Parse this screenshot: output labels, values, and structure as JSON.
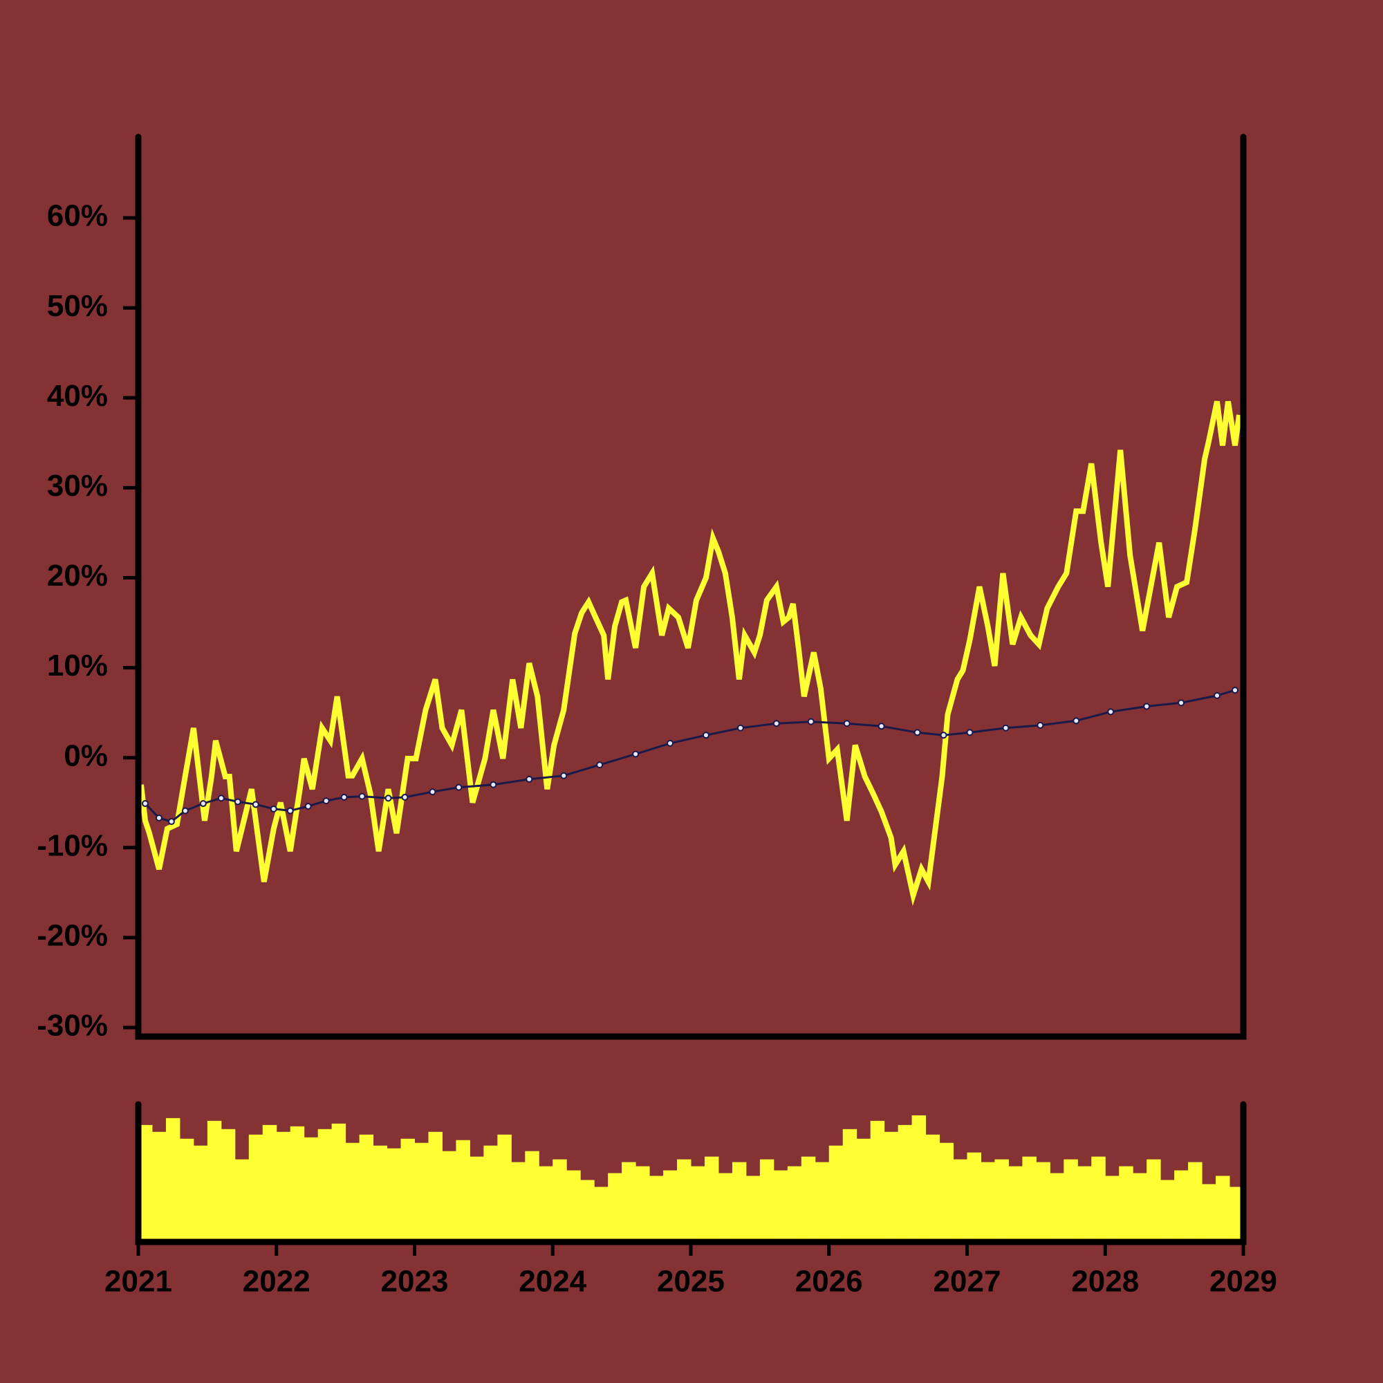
{
  "chart_data": [
    {
      "type": "line",
      "xlim": [
        2021,
        2029
      ],
      "xticks": [
        2021,
        2022,
        2023,
        2024,
        2025,
        2026,
        2027,
        2028,
        2029
      ],
      "ylim": [
        -31,
        69
      ],
      "yticks": [
        {
          "value": -30,
          "label": "-30%"
        },
        {
          "value": -20,
          "label": "-20%"
        },
        {
          "value": -10,
          "label": "-10%"
        },
        {
          "value": 0,
          "label": "0%"
        },
        {
          "value": 10,
          "label": "10%"
        },
        {
          "value": 20,
          "label": "20%"
        },
        {
          "value": 30,
          "label": "30%"
        },
        {
          "value": 40,
          "label": "40%"
        },
        {
          "value": 50,
          "label": "50%"
        },
        {
          "value": 60,
          "label": "60%"
        }
      ],
      "series": [
        {
          "color": "#ffff33",
          "x": [
            2021.02,
            2021.05,
            2021.08,
            2021.15,
            2021.21,
            2021.28,
            2021.34,
            2021.4,
            2021.48,
            2021.53,
            2021.56,
            2021.63,
            2021.66,
            2021.71,
            2021.75,
            2021.82,
            2021.91,
            2021.98,
            2022.03,
            2022.1,
            2022.17,
            2022.2,
            2022.26,
            2022.33,
            2022.39,
            2022.44,
            2022.52,
            2022.55,
            2022.62,
            2022.68,
            2022.74,
            2022.81,
            2022.87,
            2022.95,
            2023.01,
            2023.08,
            2023.15,
            2023.2,
            2023.27,
            2023.34,
            2023.42,
            2023.51,
            2023.57,
            2023.64,
            2023.71,
            2023.77,
            2023.83,
            2023.89,
            2023.96,
            2024.01,
            2024.08,
            2024.16,
            2024.21,
            2024.26,
            2024.31,
            2024.37,
            2024.4,
            2024.45,
            2024.5,
            2024.53,
            2024.6,
            2024.66,
            2024.72,
            2024.79,
            2024.84,
            2024.91,
            2024.98,
            2025.04,
            2025.11,
            2025.16,
            2025.2,
            2025.25,
            2025.3,
            2025.35,
            2025.39,
            2025.46,
            2025.5,
            2025.55,
            2025.62,
            2025.67,
            2025.71,
            2025.74,
            2025.78,
            2025.82,
            2025.89,
            2025.94,
            2026.0,
            2026.06,
            2026.13,
            2026.19,
            2026.26,
            2026.32,
            2026.38,
            2026.45,
            2026.48,
            2026.54,
            2026.61,
            2026.67,
            2026.72,
            2026.77,
            2026.82,
            2026.86,
            2026.93,
            2026.97,
            2027.02,
            2027.09,
            2027.15,
            2027.2,
            2027.26,
            2027.33,
            2027.39,
            2027.46,
            2027.52,
            2027.58,
            2027.66,
            2027.72,
            2027.79,
            2027.84,
            2027.9,
            2027.97,
            2028.02,
            2028.11,
            2028.18,
            2028.27,
            2028.33,
            2028.39,
            2028.46,
            2028.52,
            2028.59,
            2028.65,
            2028.72,
            2028.75,
            2028.81,
            2028.85,
            2028.89,
            2028.94,
            2028.97
          ],
          "values": [
            -3.0,
            -7.0,
            -8.4,
            -12.4,
            -7.9,
            -7.4,
            -2.0,
            3.3,
            -7.0,
            -2.1,
            1.9,
            -2.1,
            -2.1,
            -10.4,
            -7.9,
            -3.5,
            -13.8,
            -7.9,
            -5.0,
            -10.4,
            -3.5,
            -0.1,
            -3.5,
            3.3,
            1.9,
            6.8,
            -2.0,
            -2.0,
            -0.1,
            -4.0,
            -10.4,
            -3.5,
            -8.4,
            -0.1,
            -0.1,
            5.3,
            8.7,
            3.3,
            1.4,
            5.3,
            -5.0,
            -0.1,
            5.3,
            -0.1,
            8.7,
            3.3,
            10.5,
            6.8,
            -3.5,
            1.4,
            5.3,
            13.8,
            16.1,
            17.3,
            15.6,
            13.6,
            8.7,
            14.6,
            17.3,
            17.5,
            12.2,
            19.0,
            20.5,
            13.6,
            16.6,
            15.6,
            12.2,
            17.5,
            20.0,
            24.4,
            22.9,
            20.5,
            15.6,
            8.7,
            13.6,
            11.7,
            13.6,
            17.5,
            19.0,
            15.1,
            15.6,
            17.1,
            12.2,
            6.8,
            11.7,
            7.7,
            -0.1,
            0.9,
            -7.0,
            1.4,
            -2.1,
            -4.0,
            -6.0,
            -8.9,
            -11.9,
            -10.4,
            -15.3,
            -12.4,
            -13.8,
            -7.9,
            -2.1,
            4.8,
            8.7,
            9.7,
            13.1,
            19.0,
            14.6,
            10.2,
            20.5,
            12.6,
            15.6,
            13.6,
            12.6,
            16.6,
            19.0,
            20.5,
            27.4,
            27.4,
            32.7,
            23.9,
            19.0,
            34.2,
            22.5,
            14.1,
            19.0,
            23.9,
            15.6,
            19.0,
            19.5,
            25.4,
            33.2,
            35.2,
            39.6,
            34.7,
            39.6,
            34.7,
            38.1
          ]
        },
        {
          "color": "#1a1a4a",
          "x": [
            2021.05,
            2021.15,
            2021.24,
            2021.34,
            2021.47,
            2021.6,
            2021.72,
            2021.85,
            2021.98,
            2022.1,
            2022.23,
            2022.36,
            2022.49,
            2022.62,
            2022.81,
            2022.93,
            2023.13,
            2023.32,
            2023.57,
            2023.83,
            2024.08,
            2024.34,
            2024.6,
            2024.85,
            2025.11,
            2025.36,
            2025.62,
            2025.87,
            2026.13,
            2026.38,
            2026.64,
            2026.83,
            2027.02,
            2027.28,
            2027.53,
            2027.79,
            2028.04,
            2028.3,
            2028.55,
            2028.81,
            2028.94
          ],
          "values": [
            -5.1,
            -6.7,
            -7.1,
            -5.9,
            -5.1,
            -4.5,
            -4.9,
            -5.2,
            -5.7,
            -5.9,
            -5.4,
            -4.8,
            -4.4,
            -4.3,
            -4.5,
            -4.4,
            -3.8,
            -3.3,
            -3.0,
            -2.4,
            -2.0,
            -0.8,
            0.4,
            1.6,
            2.5,
            3.3,
            3.8,
            4.0,
            3.8,
            3.5,
            2.8,
            2.5,
            2.8,
            3.3,
            3.6,
            4.1,
            5.1,
            5.7,
            6.1,
            6.9,
            7.5
          ]
        }
      ]
    },
    {
      "type": "bar",
      "color": "#ffff33",
      "xlim": [
        2021,
        2029
      ],
      "ylim": [
        0,
        100
      ],
      "x": [
        2021.05,
        2021.15,
        2021.25,
        2021.35,
        2021.45,
        2021.55,
        2021.65,
        2021.75,
        2021.85,
        2021.95,
        2022.05,
        2022.15,
        2022.25,
        2022.35,
        2022.45,
        2022.55,
        2022.65,
        2022.75,
        2022.85,
        2022.95,
        2023.05,
        2023.15,
        2023.25,
        2023.35,
        2023.45,
        2023.55,
        2023.65,
        2023.75,
        2023.85,
        2023.95,
        2024.05,
        2024.15,
        2024.25,
        2024.35,
        2024.45,
        2024.55,
        2024.65,
        2024.75,
        2024.85,
        2024.95,
        2025.05,
        2025.15,
        2025.25,
        2025.35,
        2025.45,
        2025.55,
        2025.65,
        2025.75,
        2025.85,
        2025.95,
        2026.05,
        2026.15,
        2026.25,
        2026.35,
        2026.45,
        2026.55,
        2026.65,
        2026.75,
        2026.85,
        2026.95,
        2027.05,
        2027.15,
        2027.25,
        2027.35,
        2027.45,
        2027.55,
        2027.65,
        2027.75,
        2027.85,
        2027.95,
        2028.05,
        2028.15,
        2028.25,
        2028.35,
        2028.45,
        2028.55,
        2028.65,
        2028.75,
        2028.85,
        2028.95
      ],
      "values": [
        85,
        80,
        90,
        75,
        70,
        88,
        82,
        60,
        78,
        85,
        80,
        84,
        76,
        82,
        86,
        72,
        78,
        70,
        68,
        75,
        72,
        80,
        66,
        74,
        62,
        70,
        78,
        58,
        66,
        55,
        60,
        52,
        45,
        40,
        50,
        58,
        55,
        48,
        52,
        60,
        55,
        62,
        50,
        58,
        48,
        60,
        52,
        55,
        62,
        58,
        70,
        82,
        75,
        88,
        80,
        85,
        92,
        78,
        72,
        60,
        65,
        58,
        60,
        55,
        62,
        58,
        50,
        60,
        55,
        62,
        48,
        55,
        50,
        60,
        45,
        52,
        58,
        42,
        48,
        40
      ]
    }
  ]
}
